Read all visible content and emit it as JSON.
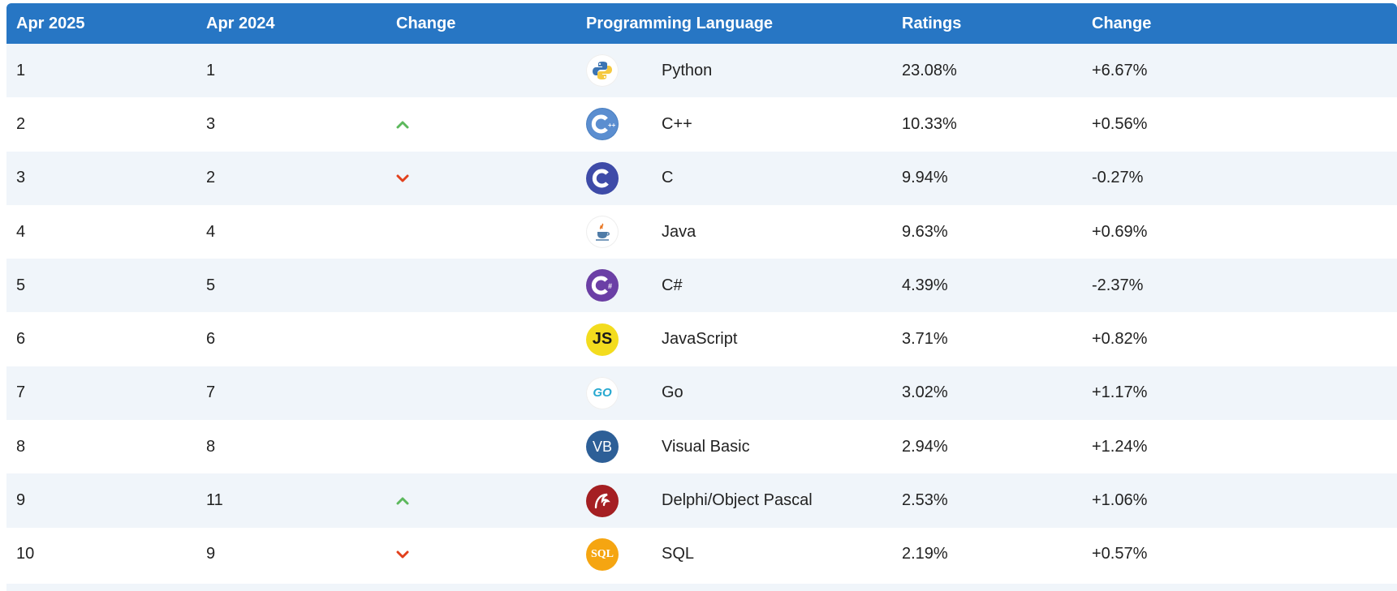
{
  "table": {
    "headers": {
      "current": "Apr 2025",
      "previous": "Apr 2024",
      "change": "Change",
      "language": "Programming Language",
      "ratings": "Ratings",
      "ratings_change": "Change"
    },
    "rows": [
      {
        "current": "1",
        "previous": "1",
        "trend": "none",
        "logo": "python-logo-icon",
        "language": "Python",
        "ratings": "23.08%",
        "change": "+6.67%"
      },
      {
        "current": "2",
        "previous": "3",
        "trend": "up",
        "logo": "cpp-logo-icon",
        "language": "C++",
        "ratings": "10.33%",
        "change": "+0.56%"
      },
      {
        "current": "3",
        "previous": "2",
        "trend": "down",
        "logo": "c-logo-icon",
        "language": "C",
        "ratings": "9.94%",
        "change": "-0.27%"
      },
      {
        "current": "4",
        "previous": "4",
        "trend": "none",
        "logo": "java-logo-icon",
        "language": "Java",
        "ratings": "9.63%",
        "change": "+0.69%"
      },
      {
        "current": "5",
        "previous": "5",
        "trend": "none",
        "logo": "csharp-logo-icon",
        "language": "C#",
        "ratings": "4.39%",
        "change": "-2.37%"
      },
      {
        "current": "6",
        "previous": "6",
        "trend": "none",
        "logo": "javascript-logo-icon",
        "language": "JavaScript",
        "ratings": "3.71%",
        "change": "+0.82%"
      },
      {
        "current": "7",
        "previous": "7",
        "trend": "none",
        "logo": "go-logo-icon",
        "language": "Go",
        "ratings": "3.02%",
        "change": "+1.17%"
      },
      {
        "current": "8",
        "previous": "8",
        "trend": "none",
        "logo": "visual-basic-logo-icon",
        "language": "Visual Basic",
        "ratings": "2.94%",
        "change": "+1.24%"
      },
      {
        "current": "9",
        "previous": "11",
        "trend": "up",
        "logo": "delphi-logo-icon",
        "language": "Delphi/Object Pascal",
        "ratings": "2.53%",
        "change": "+1.06%"
      },
      {
        "current": "10",
        "previous": "9",
        "trend": "down",
        "logo": "sql-logo-icon",
        "language": "SQL",
        "ratings": "2.19%",
        "change": "+0.57%"
      }
    ]
  },
  "logo_text": {
    "js": "JS",
    "go": "GO",
    "vb": "VB",
    "sql": "SQL"
  },
  "colors": {
    "header_bg": "#2776c4",
    "row_alt_bg": "#f0f5fa",
    "trend_up": "#5cb85c",
    "trend_down": "#e2401c"
  }
}
